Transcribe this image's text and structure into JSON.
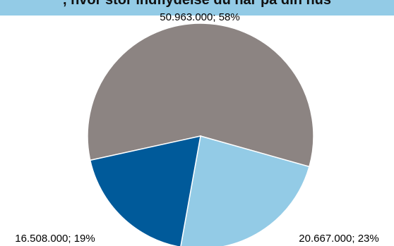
{
  "chart_data": {
    "type": "pie",
    "title": ", hvor stor indflydelse du har på din hus",
    "slices": [
      {
        "label": "50.963.000; 58%",
        "value": 50963000,
        "percent": 58,
        "color": "#8c8482"
      },
      {
        "label": "20.667.000; 23%",
        "value": 20667000,
        "percent": 23,
        "color": "#93cbe6"
      },
      {
        "label": "16.508.000; 19%",
        "value": 16508000,
        "percent": 19,
        "color": "#005a9a"
      }
    ],
    "legend": "none"
  }
}
